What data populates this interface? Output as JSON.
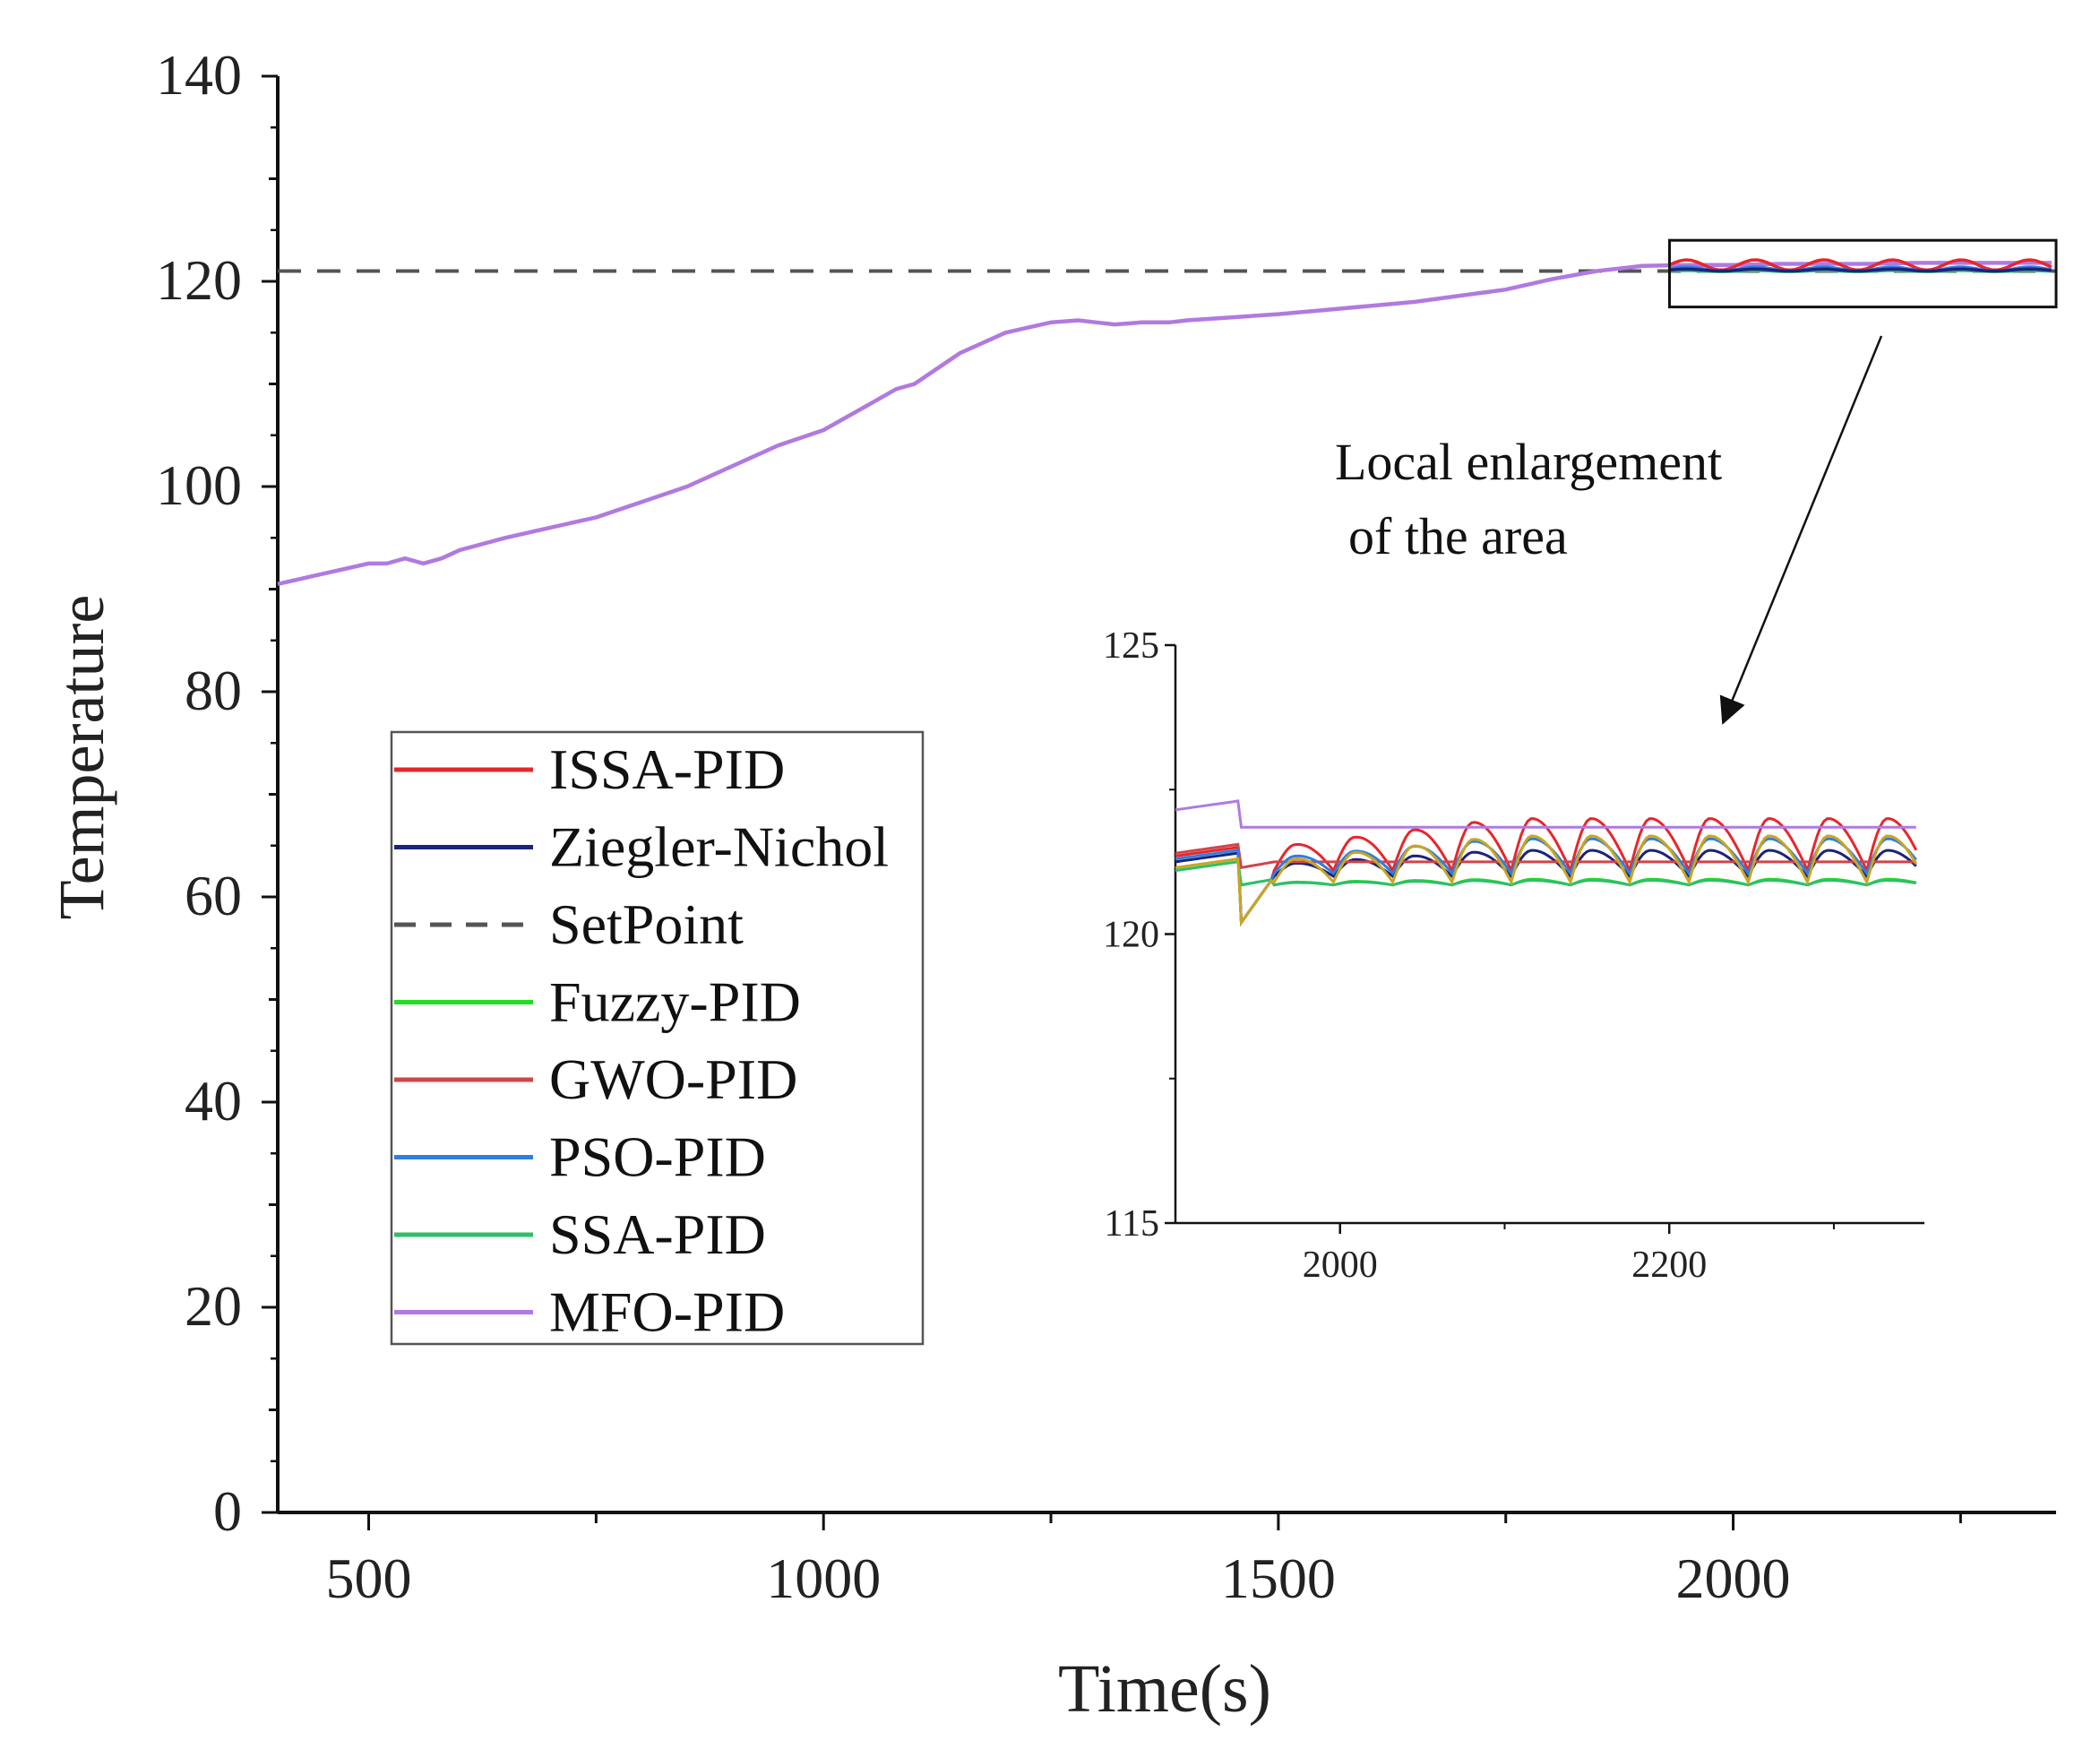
{
  "chart_data": [
    {
      "type": "line",
      "xlabel": "Time(s)",
      "ylabel": "Temperature",
      "xlim": [
        400,
        2355
      ],
      "ylim": [
        0,
        140
      ],
      "xticks": [
        500,
        1000,
        1500,
        2000
      ],
      "yticks": [
        0,
        20,
        40,
        60,
        80,
        100,
        120,
        140
      ],
      "grid": false,
      "legend_position": "lower-left",
      "setpoint": 121,
      "series": [
        {
          "name": "ISSA-PID",
          "color": "#e8262b",
          "style": "solid"
        },
        {
          "name": "Ziegler-Nichol",
          "color": "#1a237e",
          "style": "solid"
        },
        {
          "name": "SetPoint",
          "color": "#555555",
          "style": "dashed",
          "value": 121
        },
        {
          "name": "Fuzzy-PID",
          "color": "#22dd22",
          "style": "solid"
        },
        {
          "name": "GWO-PID",
          "color": "#d0444a",
          "style": "solid"
        },
        {
          "name": "PSO-PID",
          "color": "#2f7fe0",
          "style": "solid"
        },
        {
          "name": "SSA-PID",
          "color": "#2fbf6a",
          "style": "solid"
        },
        {
          "name": "MFO-PID",
          "color": "#b07ae0",
          "style": "solid",
          "x": [
            400,
            450,
            500,
            520,
            540,
            560,
            580,
            600,
            650,
            700,
            750,
            800,
            850,
            900,
            950,
            1000,
            1050,
            1080,
            1100,
            1150,
            1200,
            1250,
            1280,
            1300,
            1320,
            1350,
            1380,
            1400,
            1450,
            1500,
            1550,
            1600,
            1650,
            1700,
            1750,
            1800,
            1850,
            1880,
            1900,
            1950,
            2000,
            2050,
            2100,
            2150,
            2200,
            2250,
            2300,
            2350
          ],
          "y": [
            90.5,
            91.5,
            92.5,
            92.5,
            93,
            92.5,
            93,
            93.8,
            95,
            96,
            97,
            98.5,
            100,
            102,
            104,
            105.5,
            108,
            109.5,
            110,
            113,
            115,
            116,
            116.2,
            116,
            115.8,
            116,
            116,
            116.2,
            116.5,
            116.8,
            117.2,
            117.6,
            118,
            118.6,
            119.2,
            120.2,
            121,
            121.3,
            121.5,
            121.6,
            121.6,
            121.7,
            121.7,
            121.7,
            121.8,
            121.8,
            121.8,
            121.8
          ]
        }
      ],
      "inset_box": {
        "x_range": [
          1930,
          2355
        ],
        "y_range": [
          117.5,
          124
        ]
      }
    },
    {
      "type": "line",
      "title": "",
      "xlim": [
        1900,
        2355
      ],
      "ylim": [
        115,
        125
      ],
      "xticks": [
        2000,
        2200
      ],
      "yticks": [
        115,
        120,
        125
      ],
      "series": [
        {
          "name": "ISSA-PID",
          "color": "#e8262b",
          "base": 121.2,
          "amp": 0.9
        },
        {
          "name": "Ziegler-Nichol",
          "color": "#1a237e",
          "base": 121.1,
          "amp": 0.45
        },
        {
          "name": "Fuzzy-PID",
          "color": "#22dd22",
          "base": 120.95,
          "amp": 0.1
        },
        {
          "name": "GWO-PID",
          "color": "#d0444a",
          "base": 121.25,
          "amp": 0.0
        },
        {
          "name": "PSO-PID",
          "color": "#2f7fe0",
          "base": 121.15,
          "amp": 0.6
        },
        {
          "name": "SSA-PID",
          "color": "#2fbf6a",
          "base": 120.95,
          "amp": 0.08
        },
        {
          "name": "MFO-PID",
          "color": "#b07ae0",
          "base": 121.85,
          "amp": 0.0
        },
        {
          "name": "",
          "color": "#c9a620",
          "base": 121.0,
          "amp": 0.8
        }
      ]
    }
  ],
  "annotation": {
    "line1": "Local enlargement",
    "line2": "of the area"
  }
}
